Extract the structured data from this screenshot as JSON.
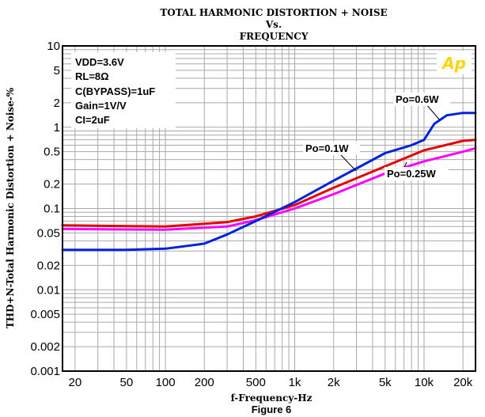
{
  "chart_data": {
    "type": "line",
    "title_lines": [
      "TOTAL HARMONIC DISTORTION + NOISE",
      "Vs.",
      "FREQUENCY"
    ],
    "xlabel": "f-Frequency-Hz",
    "caption": "Figure 6",
    "ylabel": "THD+N-Total Harmonic Distortion + Noise-%",
    "xscale": "log",
    "yscale": "log",
    "xlim": [
      16,
      25000
    ],
    "ylim": [
      0.001,
      10
    ],
    "x_ticks": [
      {
        "value": 20,
        "label": "20"
      },
      {
        "value": 50,
        "label": "50"
      },
      {
        "value": 100,
        "label": "100"
      },
      {
        "value": 200,
        "label": "200"
      },
      {
        "value": 500,
        "label": "500"
      },
      {
        "value": 1000,
        "label": "1k"
      },
      {
        "value": 2000,
        "label": "2k"
      },
      {
        "value": 5000,
        "label": "5k"
      },
      {
        "value": 10000,
        "label": "10k"
      },
      {
        "value": 20000,
        "label": "20k"
      }
    ],
    "y_ticks": [
      {
        "value": 10,
        "label": "10"
      },
      {
        "value": 5,
        "label": "5"
      },
      {
        "value": 2,
        "label": "2"
      },
      {
        "value": 1,
        "label": "1"
      },
      {
        "value": 0.5,
        "label": "0.5"
      },
      {
        "value": 0.2,
        "label": "0.2"
      },
      {
        "value": 0.1,
        "label": "0.1"
      },
      {
        "value": 0.05,
        "label": "0.05"
      },
      {
        "value": 0.02,
        "label": "0.02"
      },
      {
        "value": 0.01,
        "label": "0.01"
      },
      {
        "value": 0.005,
        "label": "0.005"
      },
      {
        "value": 0.002,
        "label": "0.002"
      },
      {
        "value": 0.001,
        "label": "0.001"
      }
    ],
    "grid": true,
    "conditions": [
      "VDD=3.6V",
      "RL=8Ω",
      "C(BYPASS)=1uF",
      "Gain=1V/V",
      "CI=2uF"
    ],
    "logo": "Ap",
    "series": [
      {
        "name": "Po=0.1W",
        "color": "#e60000",
        "x": [
          16,
          100,
          300,
          500,
          1000,
          2000,
          5000,
          10000,
          20000,
          25000
        ],
        "y": [
          0.062,
          0.06,
          0.068,
          0.08,
          0.11,
          0.18,
          0.33,
          0.52,
          0.68,
          0.7
        ]
      },
      {
        "name": "Po=0.25W",
        "color": "#ff00ff",
        "x": [
          16,
          100,
          300,
          500,
          1000,
          2000,
          5000,
          10000,
          20000,
          25000
        ],
        "y": [
          0.056,
          0.055,
          0.06,
          0.072,
          0.1,
          0.15,
          0.27,
          0.38,
          0.5,
          0.55
        ]
      },
      {
        "name": "Po=0.6W",
        "color": "#0022dd",
        "x": [
          16,
          50,
          100,
          200,
          300,
          500,
          1000,
          2000,
          5000,
          8000,
          10000,
          12000,
          15000,
          20000,
          25000
        ],
        "y": [
          0.031,
          0.031,
          0.032,
          0.037,
          0.048,
          0.07,
          0.12,
          0.22,
          0.48,
          0.6,
          0.7,
          1.1,
          1.4,
          1.5,
          1.5
        ]
      }
    ],
    "annotations": [
      {
        "text": "Po=0.6W",
        "series": "Po=0.6W"
      },
      {
        "text": "Po=0.1W",
        "series": "Po=0.1W"
      },
      {
        "text": "Po=0.25W",
        "series": "Po=0.25W"
      }
    ]
  }
}
